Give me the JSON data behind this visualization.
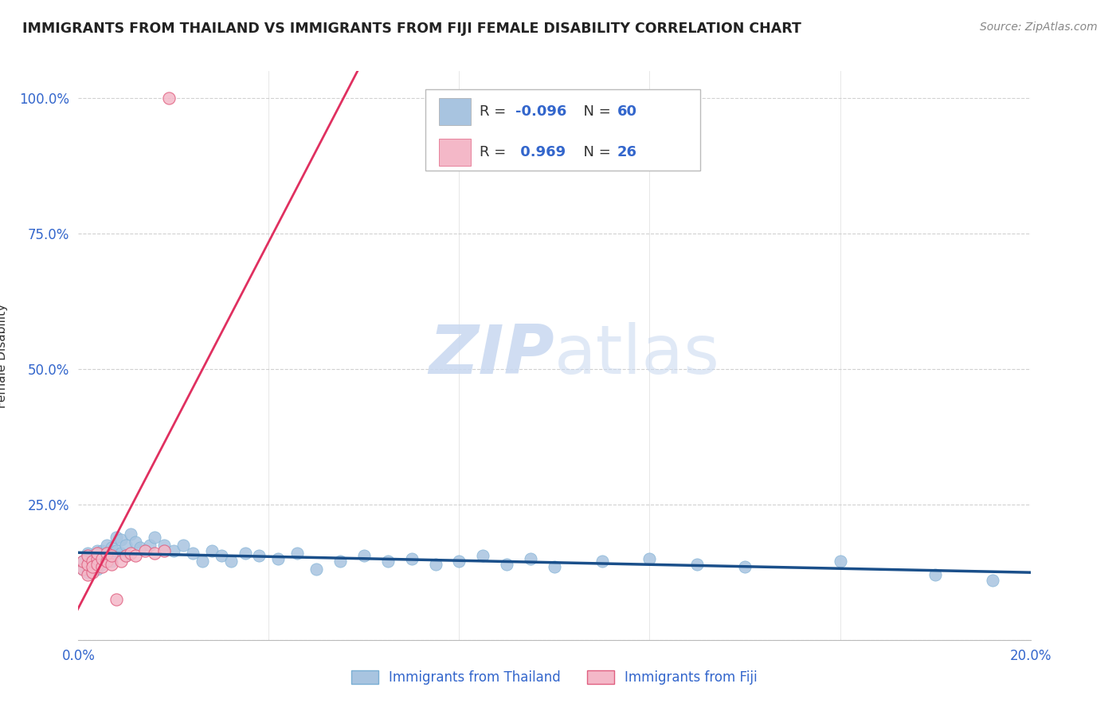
{
  "title": "IMMIGRANTS FROM THAILAND VS IMMIGRANTS FROM FIJI FEMALE DISABILITY CORRELATION CHART",
  "source": "Source: ZipAtlas.com",
  "ylabel": "Female Disability",
  "xlim": [
    0.0,
    0.2
  ],
  "ylim": [
    0.0,
    1.05
  ],
  "yticks": [
    0.0,
    0.25,
    0.5,
    0.75,
    1.0
  ],
  "ytick_labels": [
    "",
    "25.0%",
    "50.0%",
    "75.0%",
    "100.0%"
  ],
  "xticks": [
    0.0,
    0.04,
    0.08,
    0.12,
    0.16,
    0.2
  ],
  "xtick_labels": [
    "0.0%",
    "",
    "",
    "",
    "",
    "20.0%"
  ],
  "thailand_R": -0.096,
  "thailand_N": 60,
  "fiji_R": 0.969,
  "fiji_N": 26,
  "thailand_color": "#a8c4e0",
  "thailand_edge_color": "#7aafd4",
  "thailand_line_color": "#1a4f8a",
  "fiji_color": "#f4b8c8",
  "fiji_edge_color": "#e06080",
  "fiji_line_color": "#e03060",
  "legend_text_color": "#3366cc",
  "watermark_color": "#c8d8f0",
  "background_color": "#ffffff",
  "grid_color": "#cccccc",
  "thailand_x": [
    0.001,
    0.001,
    0.002,
    0.002,
    0.002,
    0.003,
    0.003,
    0.003,
    0.004,
    0.004,
    0.004,
    0.005,
    0.005,
    0.005,
    0.006,
    0.006,
    0.007,
    0.007,
    0.007,
    0.008,
    0.008,
    0.009,
    0.009,
    0.01,
    0.01,
    0.011,
    0.012,
    0.013,
    0.015,
    0.016,
    0.018,
    0.02,
    0.022,
    0.024,
    0.026,
    0.028,
    0.03,
    0.032,
    0.035,
    0.038,
    0.042,
    0.046,
    0.05,
    0.055,
    0.06,
    0.065,
    0.07,
    0.075,
    0.08,
    0.085,
    0.09,
    0.095,
    0.1,
    0.11,
    0.12,
    0.13,
    0.14,
    0.16,
    0.18,
    0.192
  ],
  "thailand_y": [
    0.145,
    0.13,
    0.16,
    0.14,
    0.125,
    0.15,
    0.135,
    0.155,
    0.145,
    0.165,
    0.13,
    0.155,
    0.14,
    0.165,
    0.15,
    0.175,
    0.16,
    0.145,
    0.17,
    0.19,
    0.165,
    0.185,
    0.16,
    0.175,
    0.155,
    0.195,
    0.18,
    0.17,
    0.175,
    0.19,
    0.175,
    0.165,
    0.175,
    0.16,
    0.145,
    0.165,
    0.155,
    0.145,
    0.16,
    0.155,
    0.15,
    0.16,
    0.13,
    0.145,
    0.155,
    0.145,
    0.15,
    0.14,
    0.145,
    0.155,
    0.14,
    0.15,
    0.135,
    0.145,
    0.15,
    0.14,
    0.135,
    0.145,
    0.12,
    0.11
  ],
  "fiji_x": [
    0.001,
    0.001,
    0.002,
    0.002,
    0.002,
    0.003,
    0.003,
    0.003,
    0.004,
    0.004,
    0.004,
    0.005,
    0.005,
    0.006,
    0.006,
    0.007,
    0.007,
    0.008,
    0.009,
    0.01,
    0.011,
    0.012,
    0.014,
    0.016,
    0.018,
    0.019
  ],
  "fiji_y": [
    0.13,
    0.145,
    0.12,
    0.14,
    0.155,
    0.125,
    0.145,
    0.135,
    0.15,
    0.14,
    0.16,
    0.135,
    0.15,
    0.145,
    0.16,
    0.14,
    0.155,
    0.075,
    0.145,
    0.155,
    0.16,
    0.155,
    0.165,
    0.16,
    0.165,
    1.0
  ]
}
